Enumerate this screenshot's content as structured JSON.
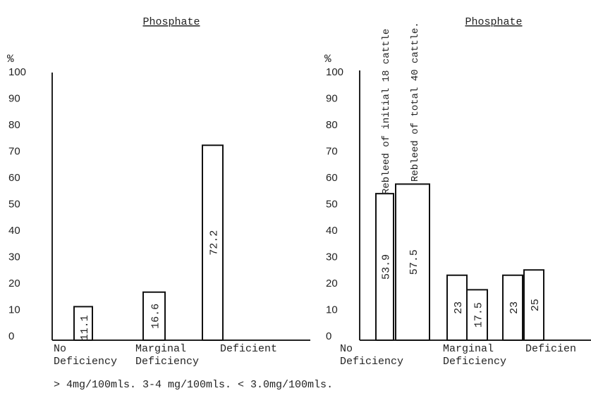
{
  "chart_data": [
    {
      "type": "bar",
      "title": "Phosphate",
      "ylabel": "%",
      "ylim": [
        0,
        100
      ],
      "yticks": [
        "0",
        "10",
        "20",
        "30",
        "40",
        "50",
        "60",
        "70",
        "80",
        "90",
        "100"
      ],
      "categories": [
        "No\nDeficiency",
        "Marginal\nDeficiency",
        "Deficient"
      ],
      "values": [
        11.1,
        16.6,
        72.2
      ],
      "labels": [
        "11.1",
        "16.6",
        "72.2"
      ],
      "grid": false,
      "bar_color": "#ffffff",
      "edge_color": "#111111"
    },
    {
      "type": "bar",
      "title": "Phosphate",
      "ylabel": "%",
      "ylim": [
        0,
        100
      ],
      "yticks": [
        "0",
        "10",
        "20",
        "30",
        "40",
        "50",
        "60",
        "70",
        "80",
        "90",
        "100"
      ],
      "categories": [
        "No\nDeficiency",
        "Marginal\nDeficiency",
        "Deficien"
      ],
      "series": [
        {
          "name": "Rebleed of initial 18 cattle",
          "values": [
            53.9,
            23,
            23
          ],
          "labels": [
            "53.9",
            "23",
            "23"
          ]
        },
        {
          "name": "Rebleed of total 40 cattle.",
          "values": [
            57.5,
            17.5,
            25
          ],
          "labels": [
            "57.5",
            "17.5",
            "25"
          ]
        }
      ],
      "grid": false,
      "bar_color": "#ffffff",
      "edge_color": "#111111"
    }
  ],
  "footer": "> 4mg/100mls.  3-4 mg/100mls. < 3.0mg/100mls."
}
